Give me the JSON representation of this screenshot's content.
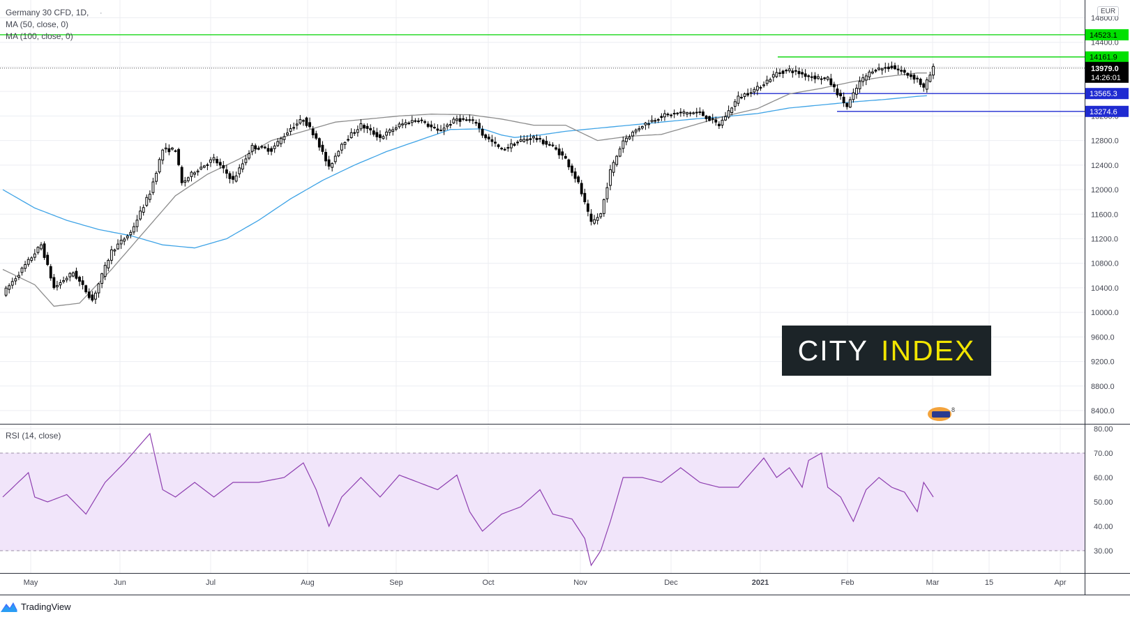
{
  "legend": {
    "symbol": "Germany 30 CFD, 1D,",
    "ma50": "MA (50, close, 0)",
    "ma100": "MA (100, close, 0)",
    "rsi": "RSI (14, close)"
  },
  "currency": "EUR",
  "brand": "TradingView",
  "watermark": {
    "part1": "CITY",
    "part2": "INDEX"
  },
  "medal_text": "8",
  "colors": {
    "up_candle": "#ffffff",
    "down_candle": "#000000",
    "ma50": "#8c8c8c",
    "ma100": "#3ea3e6",
    "resistance": "#00d400",
    "support": "#1f2bd1",
    "rsi_line": "#8e3fb0",
    "rsi_band": "#f1e5fa",
    "last_price_bg": "#000000"
  },
  "chart_data": {
    "type": "candlestick",
    "title": "Germany 30 CFD, 1D",
    "ylim": [
      8100,
      14900
    ],
    "y_ticks": [
      "14800.0",
      "14400.0",
      "14000.0",
      "13600.0",
      "13200.0",
      "12800.0",
      "12400.0",
      "12000.0",
      "11600.0",
      "11200.0",
      "10800.0",
      "10400.0",
      "10000.0",
      "9600.0",
      "9200.0",
      "8800.0",
      "8400.0"
    ],
    "x_ticks": [
      "May",
      "Jun",
      "Jul",
      "Aug",
      "Sep",
      "Oct",
      "Nov",
      "Dec",
      "2021",
      "Feb",
      "Mar",
      "15",
      "Apr"
    ],
    "last_price": {
      "value": "13979.0",
      "countdown": "14:26:01"
    },
    "horizontal_levels": [
      {
        "value": 14523.1,
        "label": "14523.1",
        "kind": "resistance"
      },
      {
        "value": 14161.9,
        "label": "14161.9",
        "kind": "resistance"
      },
      {
        "value": 13565.3,
        "label": "13565.3",
        "kind": "support"
      },
      {
        "value": 13274.6,
        "label": "13274.6",
        "kind": "support"
      }
    ],
    "close_anchors": [
      [
        0,
        10300
      ],
      [
        6,
        10700
      ],
      [
        12,
        11100
      ],
      [
        16,
        10400
      ],
      [
        22,
        10650
      ],
      [
        28,
        10200
      ],
      [
        34,
        11000
      ],
      [
        40,
        11300
      ],
      [
        46,
        11950
      ],
      [
        50,
        12650
      ],
      [
        54,
        12650
      ],
      [
        56,
        12100
      ],
      [
        60,
        12300
      ],
      [
        66,
        12500
      ],
      [
        72,
        12150
      ],
      [
        78,
        12700
      ],
      [
        84,
        12650
      ],
      [
        90,
        13000
      ],
      [
        94,
        13150
      ],
      [
        98,
        12850
      ],
      [
        102,
        12350
      ],
      [
        106,
        12750
      ],
      [
        112,
        13050
      ],
      [
        118,
        12850
      ],
      [
        124,
        13050
      ],
      [
        130,
        13150
      ],
      [
        136,
        12950
      ],
      [
        142,
        13150
      ],
      [
        148,
        13100
      ],
      [
        150,
        12900
      ],
      [
        156,
        12650
      ],
      [
        162,
        12800
      ],
      [
        166,
        12850
      ],
      [
        172,
        12700
      ],
      [
        176,
        12500
      ],
      [
        180,
        12100
      ],
      [
        184,
        11450
      ],
      [
        187,
        11600
      ],
      [
        190,
        12300
      ],
      [
        194,
        12800
      ],
      [
        200,
        13050
      ],
      [
        206,
        13200
      ],
      [
        212,
        13250
      ],
      [
        218,
        13250
      ],
      [
        224,
        13050
      ],
      [
        230,
        13500
      ],
      [
        236,
        13650
      ],
      [
        242,
        13900
      ],
      [
        246,
        13950
      ],
      [
        252,
        13850
      ],
      [
        258,
        13800
      ],
      [
        264,
        13350
      ],
      [
        268,
        13750
      ],
      [
        272,
        13950
      ],
      [
        278,
        14000
      ],
      [
        282,
        13900
      ],
      [
        286,
        13800
      ],
      [
        288,
        13650
      ],
      [
        291,
        13979
      ]
    ],
    "ma50_anchors": [
      [
        0,
        10700
      ],
      [
        10,
        10450
      ],
      [
        16,
        10100
      ],
      [
        24,
        10150
      ],
      [
        34,
        10700
      ],
      [
        44,
        11300
      ],
      [
        54,
        11900
      ],
      [
        64,
        12250
      ],
      [
        74,
        12500
      ],
      [
        84,
        12800
      ],
      [
        94,
        12950
      ],
      [
        104,
        13100
      ],
      [
        114,
        13150
      ],
      [
        124,
        13200
      ],
      [
        134,
        13230
      ],
      [
        146,
        13220
      ],
      [
        156,
        13150
      ],
      [
        166,
        13050
      ],
      [
        176,
        13050
      ],
      [
        186,
        12800
      ],
      [
        196,
        12870
      ],
      [
        206,
        12900
      ],
      [
        216,
        13050
      ],
      [
        226,
        13200
      ],
      [
        236,
        13320
      ],
      [
        246,
        13560
      ],
      [
        256,
        13650
      ],
      [
        266,
        13760
      ],
      [
        276,
        13840
      ],
      [
        286,
        13900
      ],
      [
        289,
        13900
      ]
    ],
    "ma100_anchors": [
      [
        0,
        12000
      ],
      [
        10,
        11700
      ],
      [
        20,
        11500
      ],
      [
        30,
        11350
      ],
      [
        40,
        11250
      ],
      [
        50,
        11100
      ],
      [
        60,
        11050
      ],
      [
        70,
        11200
      ],
      [
        80,
        11500
      ],
      [
        90,
        11850
      ],
      [
        100,
        12150
      ],
      [
        110,
        12400
      ],
      [
        120,
        12620
      ],
      [
        130,
        12800
      ],
      [
        140,
        12980
      ],
      [
        150,
        12990
      ],
      [
        156,
        12890
      ],
      [
        160,
        12850
      ],
      [
        168,
        12890
      ],
      [
        176,
        12950
      ],
      [
        186,
        13000
      ],
      [
        196,
        13050
      ],
      [
        206,
        13100
      ],
      [
        216,
        13150
      ],
      [
        226,
        13190
      ],
      [
        236,
        13240
      ],
      [
        246,
        13330
      ],
      [
        256,
        13380
      ],
      [
        266,
        13430
      ],
      [
        276,
        13470
      ],
      [
        286,
        13520
      ],
      [
        289,
        13530
      ]
    ],
    "rsi": {
      "ylim": [
        20,
        80
      ],
      "y_ticks": [
        "80.00",
        "70.00",
        "60.00",
        "50.00",
        "40.00",
        "30.00"
      ],
      "band": [
        30,
        70
      ],
      "anchors": [
        [
          0,
          52
        ],
        [
          8,
          62
        ],
        [
          10,
          52
        ],
        [
          14,
          50
        ],
        [
          20,
          53
        ],
        [
          26,
          45
        ],
        [
          32,
          58
        ],
        [
          38,
          66
        ],
        [
          44,
          75
        ],
        [
          46,
          78
        ],
        [
          50,
          55
        ],
        [
          54,
          52
        ],
        [
          60,
          58
        ],
        [
          66,
          52
        ],
        [
          72,
          58
        ],
        [
          80,
          58
        ],
        [
          88,
          60
        ],
        [
          94,
          66
        ],
        [
          98,
          55
        ],
        [
          102,
          40
        ],
        [
          106,
          52
        ],
        [
          112,
          60
        ],
        [
          118,
          52
        ],
        [
          124,
          61
        ],
        [
          130,
          58
        ],
        [
          136,
          55
        ],
        [
          142,
          61
        ],
        [
          146,
          46
        ],
        [
          150,
          38
        ],
        [
          156,
          45
        ],
        [
          162,
          48
        ],
        [
          168,
          55
        ],
        [
          172,
          45
        ],
        [
          178,
          43
        ],
        [
          182,
          35
        ],
        [
          184,
          24
        ],
        [
          187,
          30
        ],
        [
          190,
          42
        ],
        [
          194,
          60
        ],
        [
          200,
          60
        ],
        [
          206,
          58
        ],
        [
          212,
          64
        ],
        [
          218,
          58
        ],
        [
          224,
          56
        ],
        [
          230,
          56
        ],
        [
          234,
          62
        ],
        [
          238,
          68
        ],
        [
          242,
          60
        ],
        [
          246,
          64
        ],
        [
          250,
          56
        ],
        [
          252,
          67
        ],
        [
          256,
          70
        ],
        [
          258,
          56
        ],
        [
          262,
          52
        ],
        [
          266,
          42
        ],
        [
          270,
          55
        ],
        [
          274,
          60
        ],
        [
          278,
          56
        ],
        [
          282,
          54
        ],
        [
          286,
          46
        ],
        [
          288,
          58
        ],
        [
          291,
          52
        ]
      ]
    }
  }
}
